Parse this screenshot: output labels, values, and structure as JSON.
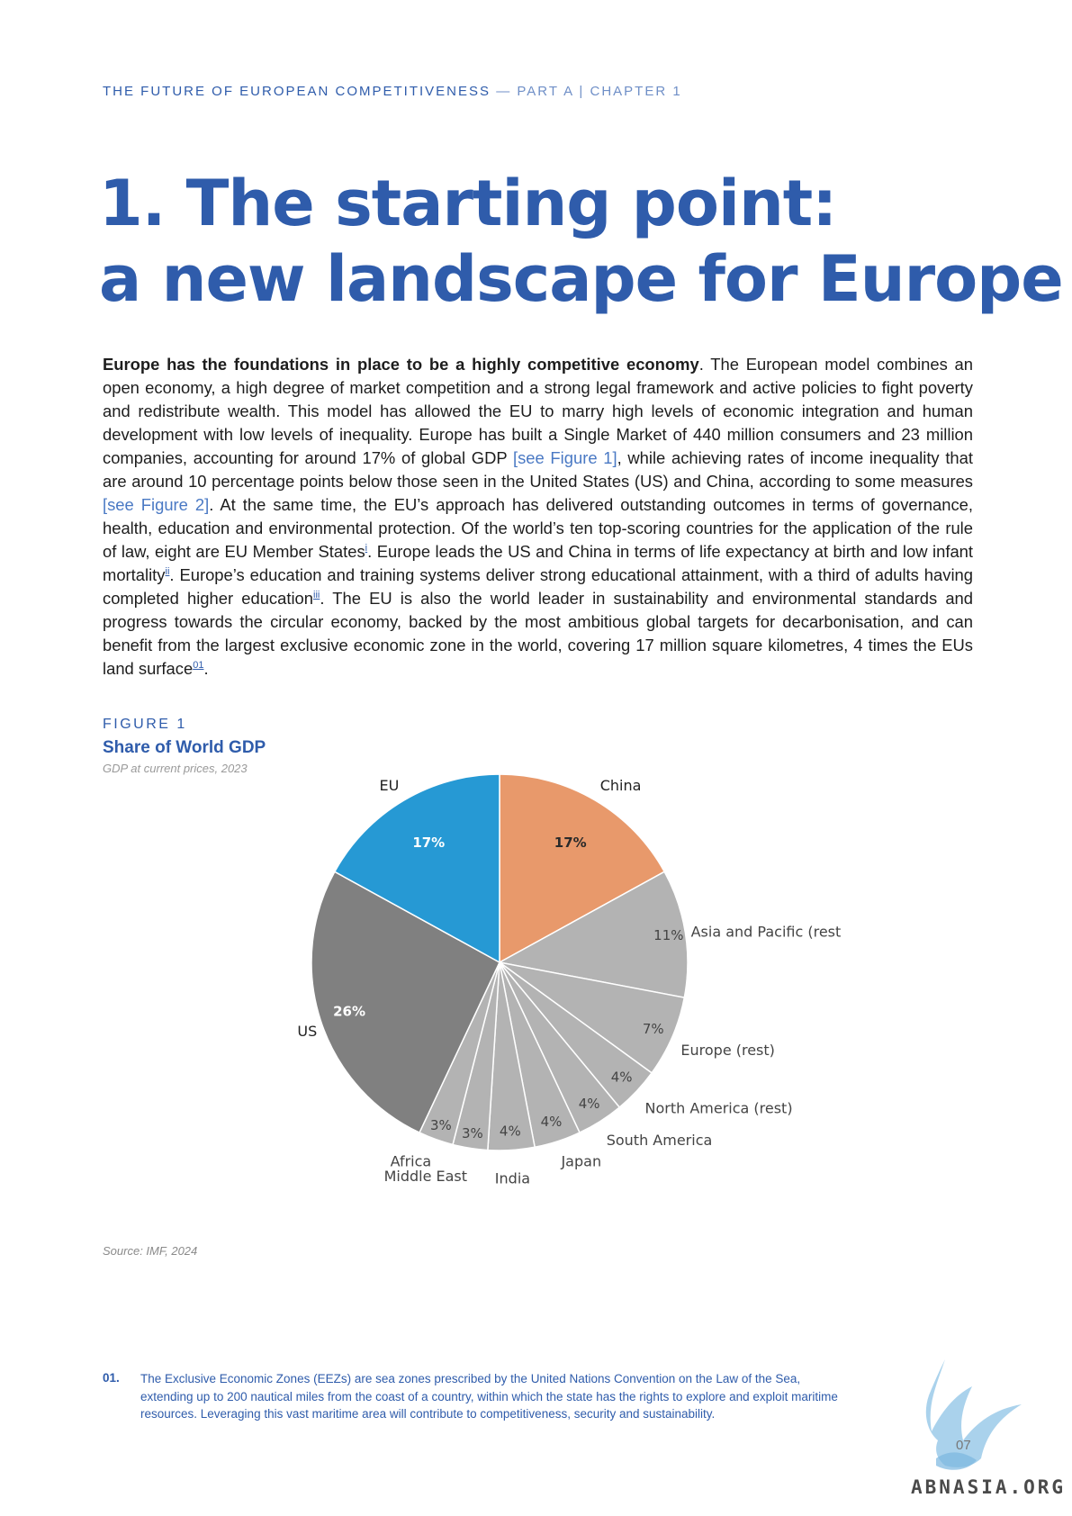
{
  "header": {
    "doc_title": "THE FUTURE OF EUROPEAN COMPETITIVENESS",
    "separator": " — ",
    "section": "PART A | CHAPTER 1"
  },
  "title": {
    "line1": "1. The starting point:",
    "line2": "a new landscape for Europe"
  },
  "intro": {
    "lead_bold": "Europe has the foundations in place to be a highly competitive economy",
    "part1": ". The European model combines an open economy, a high degree of market competition and a strong legal framework and active policies to fight poverty and redistribute wealth. This model has allowed the EU to marry high levels of economic integration and human development with low levels of inequality. Europe has built a Single Market of 440 million consumers and 23 million companies, accounting for around 17% of global GDP ",
    "link1": "[see Figure 1]",
    "part2": ", while achieving rates of income inequality that are around 10 percentage points below those seen in the United States (US) and China, according to some measures ",
    "link2": "[see Figure 2]",
    "part3": ". At the same time, the EU’s approach has delivered outstanding outcomes in terms of governance, health, education and environmental protection. Of the world’s ten top-scoring countries for the application of the rule of law, eight are EU Member States",
    "note_i": "i",
    "part4": ". Europe leads the US and China in terms of life expectancy at birth and low infant mortality",
    "note_ii": "ii",
    "part5": ". Europe’s education and training systems deliver strong educational attainment, with a third of adults having completed higher education",
    "note_iii": "iii",
    "part6": ". The EU is also the world leader in sustainability and environmental standards and progress towards the circular economy, backed by the most ambitious global targets for decarbonisation, and can benefit from the largest exclusive economic zone in the world, covering 17 million square kilometres, 4 times the EUs land surface",
    "note_01": "01",
    "part7": "."
  },
  "figure": {
    "kicker": "FIGURE 1",
    "title": "Share of World GDP",
    "subtitle": "GDP at current prices, 2023",
    "source": "Source: IMF, 2024"
  },
  "chart_data": {
    "type": "pie",
    "title": "Share of World GDP",
    "subtitle": "GDP at current prices, 2023",
    "unit": "%",
    "slices": [
      {
        "name": "China",
        "value": 17,
        "label": "17%",
        "color": "#e8996b"
      },
      {
        "name": "Asia and Pacific (rest",
        "value": 11,
        "label": "11%",
        "color": "#b3b3b3"
      },
      {
        "name": "Europe (rest)",
        "value": 7,
        "label": "7%",
        "color": "#b3b3b3"
      },
      {
        "name": "North America (rest)",
        "value": 4,
        "label": "4%",
        "color": "#b3b3b3"
      },
      {
        "name": "South America",
        "value": 4,
        "label": "4%",
        "color": "#b3b3b3"
      },
      {
        "name": "Japan",
        "value": 4,
        "label": "4%",
        "color": "#b3b3b3"
      },
      {
        "name": "India",
        "value": 4,
        "label": "4%",
        "color": "#b3b3b3"
      },
      {
        "name": "Middle East",
        "value": 3,
        "label": "3%",
        "color": "#b3b3b3"
      },
      {
        "name": "Africa",
        "value": 3,
        "label": "3%",
        "color": "#b3b3b3"
      },
      {
        "name": "US",
        "value": 26,
        "label": "26%",
        "color": "#808080"
      },
      {
        "name": "EU",
        "value": 17,
        "label": "17%",
        "color": "#2699d4"
      }
    ]
  },
  "footnote": {
    "number": "01.",
    "text": "The Exclusive Economic Zones (EEZs) are sea zones prescribed by the United Nations Convention on the Law of the Sea, extending up to 200 nautical miles from the coast of a country, within which the state has the rights to explore and exploit maritime resources. Leveraging this vast maritime area will contribute to competitiveness, security and sustainability."
  },
  "page_number": "07",
  "watermark": "ABNASIA.ORG"
}
